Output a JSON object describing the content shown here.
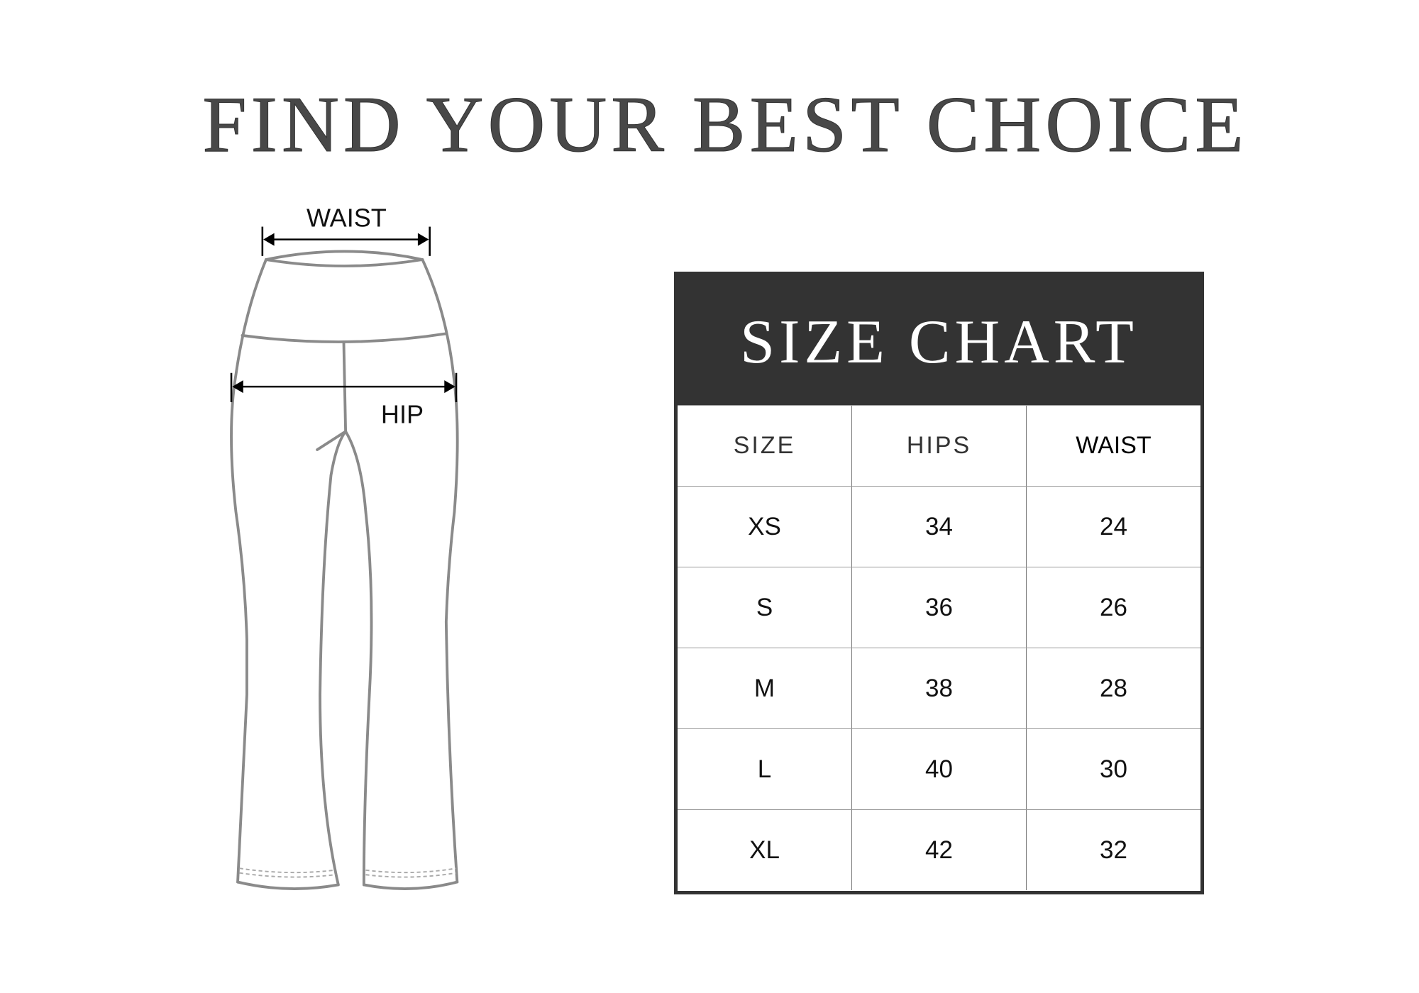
{
  "title": "FIND YOUR BEST CHOICE",
  "diagram": {
    "waist_label": "WAIST",
    "hip_label": "HIP",
    "stroke_color": "#8a8a8a"
  },
  "size_chart": {
    "title": "SIZE CHART",
    "header_color": "#333333",
    "columns": [
      "SIZE",
      "HIPS",
      "WAIST"
    ],
    "rows": [
      [
        "XS",
        "34",
        "24"
      ],
      [
        "S",
        "36",
        "26"
      ],
      [
        "M",
        "38",
        "28"
      ],
      [
        "L",
        "40",
        "30"
      ],
      [
        "XL",
        "42",
        "32"
      ]
    ]
  }
}
